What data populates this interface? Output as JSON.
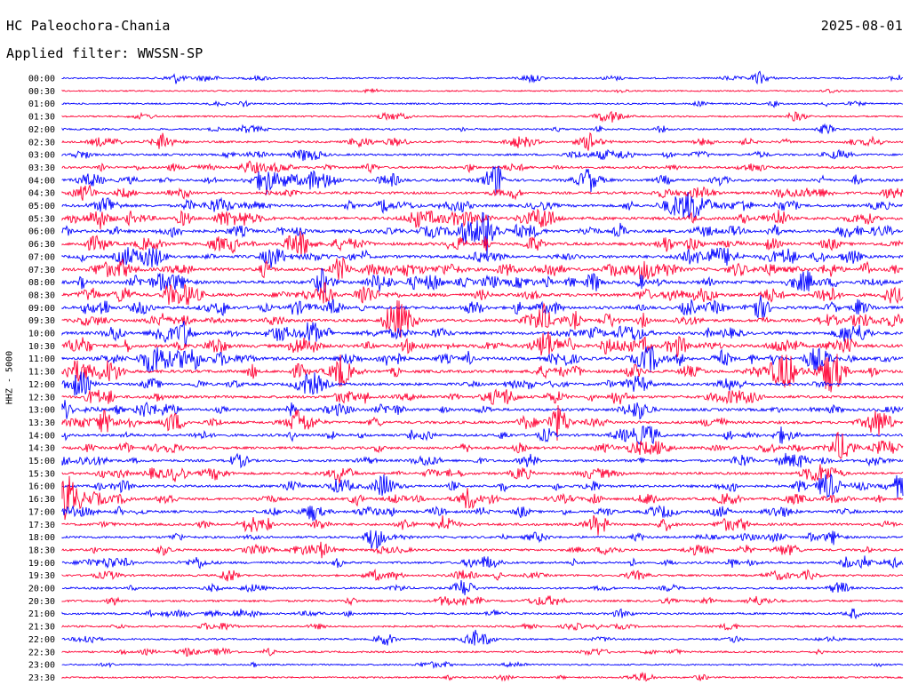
{
  "header": {
    "station": "HC Paleochora-Chania",
    "date": "2025-08-01",
    "filter": "Applied filter: WWSSN-SP"
  },
  "colors": {
    "even_hour": "#0000ff",
    "half_hour": "#ff0033",
    "background": "#ffffff"
  },
  "chart_data": {
    "type": "line",
    "title": "HC Paleochora-Chania",
    "ylabel": "HHZ - 5000",
    "xlabel": "",
    "legend": "none",
    "grid": false,
    "rows": [
      "00:00",
      "00:30",
      "01:00",
      "01:30",
      "02:00",
      "02:30",
      "03:00",
      "03:30",
      "04:00",
      "04:30",
      "05:00",
      "05:30",
      "06:00",
      "06:30",
      "07:00",
      "07:30",
      "08:00",
      "08:30",
      "09:00",
      "09:30",
      "10:00",
      "10:30",
      "11:00",
      "11:30",
      "12:00",
      "12:30",
      "13:00",
      "13:30",
      "14:00",
      "14:30",
      "15:00",
      "15:30",
      "16:00",
      "16:30",
      "17:00",
      "17:30",
      "18:00",
      "18:30",
      "19:00",
      "19:30",
      "20:00",
      "20:30",
      "21:00",
      "21:30",
      "22:00",
      "22:30",
      "23:00",
      "23:30"
    ],
    "activity": [
      2,
      1,
      2,
      2,
      3,
      4,
      4,
      5,
      6,
      6,
      7,
      8,
      8,
      8,
      8,
      9,
      9,
      9,
      8,
      8,
      8,
      9,
      9,
      8,
      7,
      7,
      7,
      7,
      6,
      6,
      6,
      6,
      6,
      6,
      6,
      6,
      5,
      5,
      5,
      4,
      4,
      4,
      4,
      3,
      3,
      3,
      2,
      2
    ],
    "events": [
      {
        "row": 0,
        "x": 198,
        "amp": 6
      },
      {
        "row": 0,
        "x": 598,
        "amp": 6
      },
      {
        "row": 0,
        "x": 856,
        "amp": 5
      },
      {
        "row": 3,
        "x": 690,
        "amp": 8
      },
      {
        "row": 5,
        "x": 184,
        "amp": 10
      },
      {
        "row": 5,
        "x": 664,
        "amp": 12
      },
      {
        "row": 8,
        "x": 298,
        "amp": 22
      },
      {
        "row": 8,
        "x": 352,
        "amp": 14
      },
      {
        "row": 8,
        "x": 662,
        "amp": 18
      },
      {
        "row": 10,
        "x": 120,
        "amp": 14
      },
      {
        "row": 10,
        "x": 778,
        "amp": 16
      },
      {
        "row": 11,
        "x": 110,
        "amp": 16
      },
      {
        "row": 12,
        "x": 548,
        "amp": 26
      },
      {
        "row": 15,
        "x": 138,
        "amp": 12
      },
      {
        "row": 19,
        "x": 610,
        "amp": 22
      },
      {
        "row": 20,
        "x": 185,
        "amp": 12
      },
      {
        "row": 20,
        "x": 716,
        "amp": 10
      },
      {
        "row": 21,
        "x": 614,
        "amp": 24
      },
      {
        "row": 23,
        "x": 384,
        "amp": 24
      },
      {
        "row": 23,
        "x": 886,
        "amp": 20
      },
      {
        "row": 23,
        "x": 932,
        "amp": 22
      },
      {
        "row": 27,
        "x": 334,
        "amp": 14
      },
      {
        "row": 27,
        "x": 625,
        "amp": 14
      },
      {
        "row": 29,
        "x": 944,
        "amp": 14
      },
      {
        "row": 31,
        "x": 382,
        "amp": 12
      },
      {
        "row": 32,
        "x": 432,
        "amp": 18
      },
      {
        "row": 32,
        "x": 1012,
        "amp": 16
      },
      {
        "row": 33,
        "x": 76,
        "amp": 30
      },
      {
        "row": 33,
        "x": 528,
        "amp": 16
      },
      {
        "row": 34,
        "x": 352,
        "amp": 12
      },
      {
        "row": 37,
        "x": 362,
        "amp": 10
      },
      {
        "row": 38,
        "x": 222,
        "amp": 8
      },
      {
        "row": 38,
        "x": 972,
        "amp": 8
      },
      {
        "row": 44,
        "x": 534,
        "amp": 7
      }
    ]
  }
}
